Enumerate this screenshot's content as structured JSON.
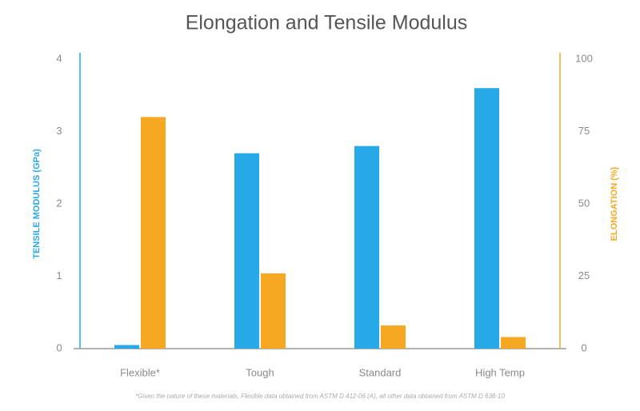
{
  "chart_data": {
    "type": "bar",
    "title": "Elongation and Tensile Modulus",
    "ylabel": "TENSILE MODULUS (GPa)",
    "y2label": "ELONGATION (%)",
    "categories": [
      "Flexible*",
      "Tough",
      "Standard",
      "High Temp"
    ],
    "series": [
      {
        "color": "#27a9e8",
        "values": [
          0.05,
          2.7,
          2.8,
          3.6
        ]
      },
      {
        "color": "#f7a823",
        "axis": "y2",
        "values": [
          80,
          26,
          8,
          4
        ]
      }
    ],
    "ylim": [
      0,
      4
    ],
    "yticks": [
      0,
      1,
      2,
      3,
      4
    ],
    "y2lim": [
      0,
      100
    ],
    "y2ticks": [
      0,
      25,
      50,
      75,
      100
    ],
    "note": "*Given the nature of these materials, Flexible data obtained from ASTM D 412-06 (A), all other data obtained from ASTM D 638-10"
  }
}
